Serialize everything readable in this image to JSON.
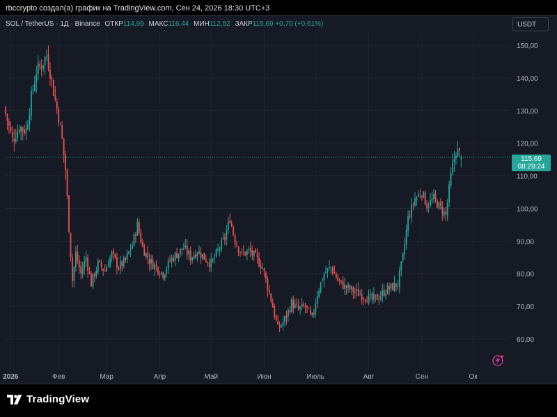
{
  "header": {
    "text": "rbccrypto создал(а) график на TradingView.com, Сен 24, 2026 18:30 UTC+3"
  },
  "legend": {
    "symbol": "SOL / TetherUS · 1Д · Binance",
    "open_label": "ОТКР",
    "open": "114,99",
    "high_label": "МАКС",
    "high": "116,44",
    "low_label": "МИН",
    "low": "112,52",
    "close_label": "ЗАКР",
    "close": "115,69",
    "change": "+0,70 (+0,61%)"
  },
  "currency_button": "USDT",
  "price_tag": {
    "price": "115,69",
    "countdown": "08:29:24"
  },
  "footer": {
    "brand": "TradingView"
  },
  "colors": {
    "up": "#26a69a",
    "down": "#ef5350",
    "background": "#161a25",
    "grid": "#232632"
  },
  "chart_data": {
    "type": "candlestick",
    "symbol": "SOL/USDT",
    "interval": "1D",
    "ylim": [
      55,
      155
    ],
    "y_ticks": [
      "60,00",
      "70,00",
      "80,00",
      "90,00",
      "100,00",
      "110,00",
      "120,00",
      "130,00",
      "140,00",
      "150,00"
    ],
    "y_tick_values": [
      60,
      70,
      80,
      90,
      100,
      110,
      120,
      130,
      140,
      150
    ],
    "x_ticks": [
      "2026",
      "Фев",
      "Мар",
      "Апр",
      "Май",
      "Июн",
      "Июль",
      "Авг",
      "Сен",
      "Ок"
    ],
    "last_price": 115.69,
    "approx_close_path": [
      [
        "2026-01-01",
        129
      ],
      [
        "2026-01-05",
        121
      ],
      [
        "2026-01-09",
        125
      ],
      [
        "2026-01-13",
        124
      ],
      [
        "2026-01-16",
        134
      ],
      [
        "2026-01-19",
        142
      ],
      [
        "2026-01-22",
        144
      ],
      [
        "2026-01-25",
        147
      ],
      [
        "2026-01-27",
        142
      ],
      [
        "2026-01-30",
        133
      ],
      [
        "2026-02-01",
        128
      ],
      [
        "2026-02-03",
        121
      ],
      [
        "2026-02-05",
        112
      ],
      [
        "2026-02-07",
        94
      ],
      [
        "2026-02-09",
        78
      ],
      [
        "2026-02-11",
        86
      ],
      [
        "2026-02-14",
        80
      ],
      [
        "2026-02-17",
        85
      ],
      [
        "2026-02-20",
        77
      ],
      [
        "2026-02-24",
        83
      ],
      [
        "2026-02-28",
        81
      ],
      [
        "2026-03-04",
        86
      ],
      [
        "2026-03-08",
        82
      ],
      [
        "2026-03-12",
        84
      ],
      [
        "2026-03-16",
        89
      ],
      [
        "2026-03-19",
        95
      ],
      [
        "2026-03-22",
        88
      ],
      [
        "2026-03-26",
        84
      ],
      [
        "2026-03-30",
        82
      ],
      [
        "2026-04-03",
        80
      ],
      [
        "2026-04-07",
        84
      ],
      [
        "2026-04-11",
        86
      ],
      [
        "2026-04-15",
        88
      ],
      [
        "2026-04-19",
        85
      ],
      [
        "2026-04-23",
        87
      ],
      [
        "2026-04-27",
        85
      ],
      [
        "2026-05-01",
        83
      ],
      [
        "2026-05-05",
        87
      ],
      [
        "2026-05-09",
        91
      ],
      [
        "2026-05-12",
        97
      ],
      [
        "2026-05-15",
        90
      ],
      [
        "2026-05-19",
        86
      ],
      [
        "2026-05-23",
        87
      ],
      [
        "2026-05-27",
        85
      ],
      [
        "2026-05-31",
        82
      ],
      [
        "2026-06-03",
        76
      ],
      [
        "2026-06-06",
        70
      ],
      [
        "2026-06-09",
        63
      ],
      [
        "2026-06-13",
        66
      ],
      [
        "2026-06-17",
        71
      ],
      [
        "2026-06-21",
        69
      ],
      [
        "2026-06-25",
        70
      ],
      [
        "2026-06-29",
        66
      ],
      [
        "2026-07-02",
        74
      ],
      [
        "2026-07-06",
        80
      ],
      [
        "2026-07-10",
        82
      ],
      [
        "2026-07-14",
        78
      ],
      [
        "2026-07-18",
        76
      ],
      [
        "2026-07-22",
        75
      ],
      [
        "2026-07-26",
        74
      ],
      [
        "2026-07-30",
        73
      ],
      [
        "2026-08-03",
        72
      ],
      [
        "2026-08-07",
        73
      ],
      [
        "2026-08-11",
        75
      ],
      [
        "2026-08-15",
        76
      ],
      [
        "2026-08-18",
        77
      ],
      [
        "2026-08-21",
        85
      ],
      [
        "2026-08-24",
        97
      ],
      [
        "2026-08-28",
        103
      ],
      [
        "2026-09-01",
        105
      ],
      [
        "2026-09-04",
        101
      ],
      [
        "2026-09-08",
        103
      ],
      [
        "2026-09-12",
        100
      ],
      [
        "2026-09-15",
        98
      ],
      [
        "2026-09-18",
        110
      ],
      [
        "2026-09-21",
        118
      ],
      [
        "2026-09-24",
        115.69
      ]
    ]
  }
}
